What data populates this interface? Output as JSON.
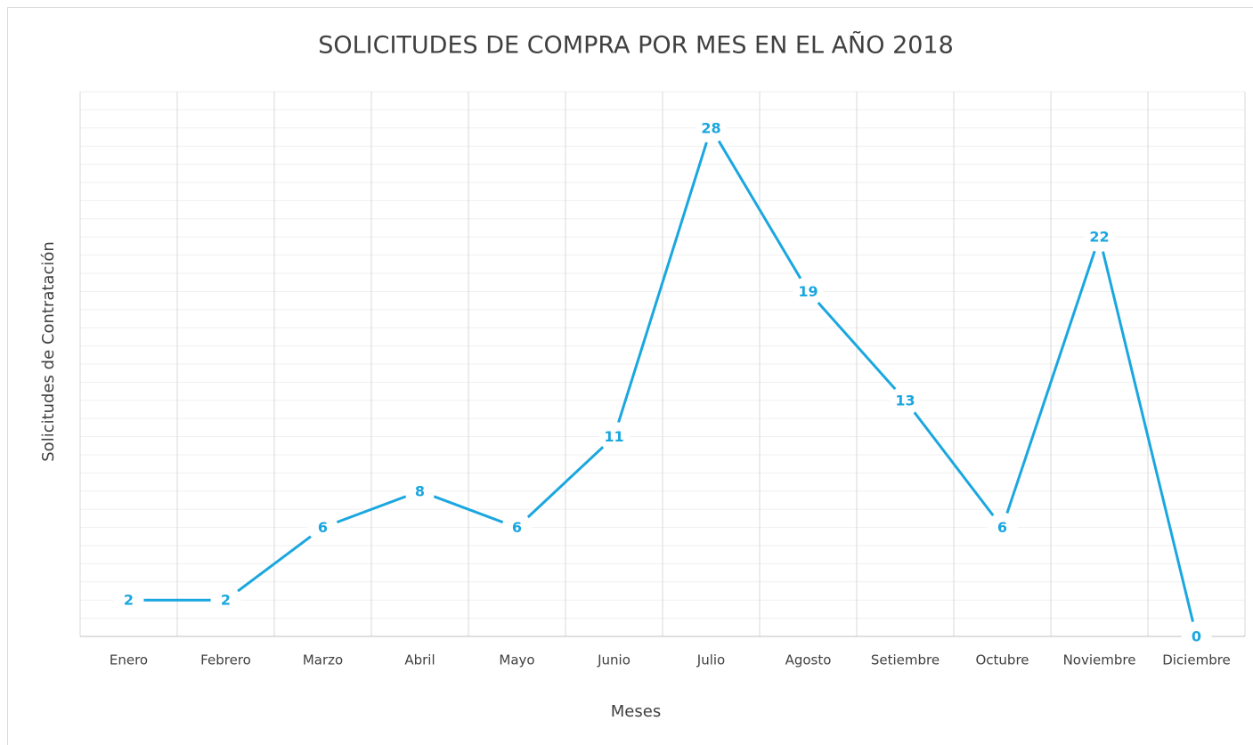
{
  "chart_data": {
    "type": "line",
    "title": "SOLICITUDES DE COMPRA POR MES EN EL AÑO 2018",
    "x_label": "Meses",
    "y_label": "Solicitudes de Contratación",
    "categories": [
      "Enero",
      "Febrero",
      "Marzo",
      "Abril",
      "Mayo",
      "Junio",
      "Julio",
      "Agosto",
      "Setiembre",
      "Octubre",
      "Noviembre",
      "Diciembre"
    ],
    "values": [
      2,
      2,
      6,
      8,
      6,
      11,
      28,
      19,
      13,
      6,
      22,
      0
    ],
    "color": "#1aa7df",
    "ylim": [
      0,
      30
    ],
    "yticks": [
      0,
      1,
      2,
      3,
      4,
      5,
      6,
      7,
      8,
      9,
      10,
      11,
      12,
      13,
      14,
      15,
      16,
      17,
      18,
      19,
      20,
      21,
      22,
      23,
      24,
      25,
      26,
      27,
      28,
      29,
      30
    ],
    "grid": true
  }
}
